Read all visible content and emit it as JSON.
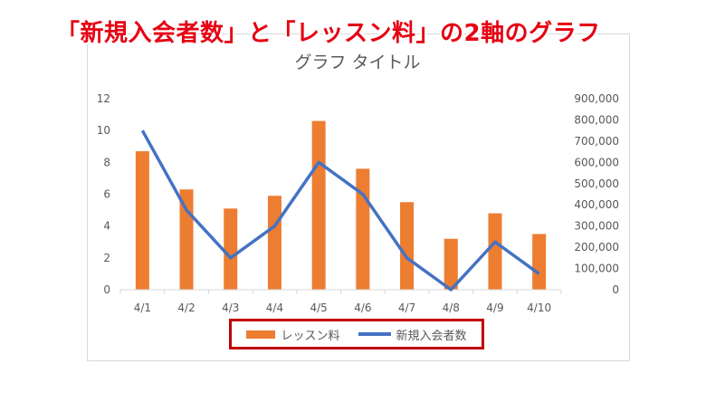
{
  "headline": "「新規入会者数」と「レッスン料」の2軸のグラフ",
  "colors": {
    "bar": "#ed7d31",
    "line": "#4472c4",
    "axis_text": "#595959",
    "grid": "#d9d9d9",
    "highlight": "#c00000",
    "headline": "#e60012"
  },
  "chart_data": {
    "type": "bar",
    "combo": "bar + line (secondary axis)",
    "title": "グラフ タイトル",
    "categories": [
      "4/1",
      "4/2",
      "4/3",
      "4/4",
      "4/5",
      "4/6",
      "4/7",
      "4/8",
      "4/9",
      "4/10"
    ],
    "series": [
      {
        "name": "レッスン料",
        "type": "bar",
        "axis": "primary",
        "values": [
          8.7,
          6.3,
          5.1,
          5.9,
          10.6,
          7.6,
          5.5,
          3.2,
          4.8,
          3.5
        ]
      },
      {
        "name": "新規入会者数",
        "type": "line",
        "axis": "secondary",
        "values": [
          750000,
          375000,
          150000,
          300000,
          600000,
          450000,
          150000,
          0,
          225000,
          75000
        ]
      }
    ],
    "y_primary": {
      "ylim": [
        0,
        12
      ],
      "ticks": [
        "0",
        "2",
        "4",
        "6",
        "8",
        "10",
        "12"
      ]
    },
    "y_secondary": {
      "ylim": [
        0,
        900000
      ],
      "ticks": [
        "0",
        "100,000",
        "200,000",
        "300,000",
        "400,000",
        "500,000",
        "600,000",
        "700,000",
        "800,000",
        "900,000"
      ]
    },
    "grid": false,
    "legend_position": "bottom"
  }
}
